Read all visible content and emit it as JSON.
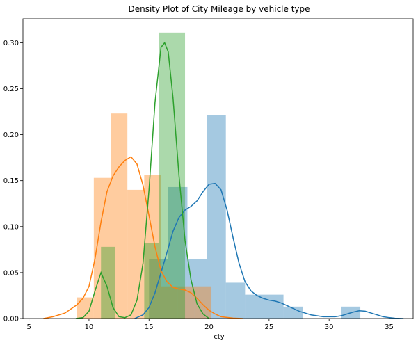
{
  "chart_data": {
    "type": "histogram+kde",
    "title": "Density Plot of City Mileage by vehicle type",
    "xlabel": "cty",
    "ylabel": "",
    "xlim": [
      4.5,
      37.0
    ],
    "ylim": [
      0,
      0.326
    ],
    "xticks": [
      5,
      10,
      15,
      20,
      25,
      30,
      35
    ],
    "yticks": [
      0.0,
      0.05,
      0.1,
      0.15,
      0.2,
      0.25,
      0.3
    ],
    "ytick_labels": [
      "0.00",
      "0.05",
      "0.10",
      "0.15",
      "0.20",
      "0.25",
      "0.30"
    ],
    "grid": false,
    "legend": "none",
    "series": [
      {
        "color": "#1f77b4",
        "hist_bins": [
          {
            "x0": 15.0,
            "x1": 16.6,
            "density": 0.065
          },
          {
            "x0": 16.6,
            "x1": 18.2,
            "density": 0.143
          },
          {
            "x0": 18.2,
            "x1": 19.8,
            "density": 0.065
          },
          {
            "x0": 19.8,
            "x1": 21.4,
            "density": 0.221
          },
          {
            "x0": 21.4,
            "x1": 23.0,
            "density": 0.039
          },
          {
            "x0": 23.0,
            "x1": 24.6,
            "density": 0.026
          },
          {
            "x0": 24.6,
            "x1": 26.2,
            "density": 0.026
          },
          {
            "x0": 26.2,
            "x1": 27.8,
            "density": 0.013
          },
          {
            "x0": 27.8,
            "x1": 29.4,
            "density": 0.0
          },
          {
            "x0": 29.4,
            "x1": 31.0,
            "density": 0.0
          },
          {
            "x0": 31.0,
            "x1": 32.6,
            "density": 0.013
          }
        ],
        "kde_points": [
          [
            13.8,
            0.0
          ],
          [
            14.5,
            0.004
          ],
          [
            15.0,
            0.012
          ],
          [
            15.5,
            0.028
          ],
          [
            16.0,
            0.05
          ],
          [
            16.5,
            0.072
          ],
          [
            17.0,
            0.095
          ],
          [
            17.5,
            0.11
          ],
          [
            18.0,
            0.118
          ],
          [
            18.5,
            0.122
          ],
          [
            19.0,
            0.128
          ],
          [
            19.5,
            0.138
          ],
          [
            20.0,
            0.146
          ],
          [
            20.5,
            0.147
          ],
          [
            21.0,
            0.14
          ],
          [
            21.5,
            0.118
          ],
          [
            22.0,
            0.088
          ],
          [
            22.5,
            0.06
          ],
          [
            23.0,
            0.04
          ],
          [
            23.5,
            0.03
          ],
          [
            24.0,
            0.025
          ],
          [
            24.5,
            0.022
          ],
          [
            25.0,
            0.02
          ],
          [
            25.5,
            0.019
          ],
          [
            26.0,
            0.017
          ],
          [
            26.5,
            0.014
          ],
          [
            27.0,
            0.011
          ],
          [
            27.5,
            0.008
          ],
          [
            28.0,
            0.006
          ],
          [
            28.5,
            0.004
          ],
          [
            29.0,
            0.003
          ],
          [
            29.5,
            0.002
          ],
          [
            30.0,
            0.002
          ],
          [
            30.5,
            0.002
          ],
          [
            31.0,
            0.003
          ],
          [
            31.5,
            0.005
          ],
          [
            32.0,
            0.007
          ],
          [
            32.5,
            0.0085
          ],
          [
            33.0,
            0.008
          ],
          [
            33.5,
            0.006
          ],
          [
            34.0,
            0.004
          ],
          [
            34.5,
            0.002
          ],
          [
            35.0,
            0.001
          ],
          [
            35.5,
            0.0003
          ],
          [
            36.2,
            0.0
          ]
        ]
      },
      {
        "color": "#ff7f0e",
        "hist_bins": [
          {
            "x0": 9.0,
            "x1": 10.4,
            "density": 0.023
          },
          {
            "x0": 10.4,
            "x1": 11.8,
            "density": 0.153
          },
          {
            "x0": 11.8,
            "x1": 13.2,
            "density": 0.223
          },
          {
            "x0": 13.2,
            "x1": 14.6,
            "density": 0.14
          },
          {
            "x0": 14.6,
            "x1": 16.0,
            "density": 0.156
          },
          {
            "x0": 16.0,
            "x1": 17.4,
            "density": 0.035
          },
          {
            "x0": 17.4,
            "x1": 18.8,
            "density": 0.035
          },
          {
            "x0": 18.8,
            "x1": 20.2,
            "density": 0.035
          }
        ],
        "kde_points": [
          [
            6.2,
            0.0
          ],
          [
            7.0,
            0.002
          ],
          [
            8.0,
            0.006
          ],
          [
            9.0,
            0.015
          ],
          [
            9.5,
            0.022
          ],
          [
            10.0,
            0.035
          ],
          [
            10.5,
            0.065
          ],
          [
            11.0,
            0.105
          ],
          [
            11.5,
            0.138
          ],
          [
            12.0,
            0.155
          ],
          [
            12.5,
            0.165
          ],
          [
            13.0,
            0.172
          ],
          [
            13.5,
            0.176
          ],
          [
            14.0,
            0.168
          ],
          [
            14.5,
            0.145
          ],
          [
            15.0,
            0.112
          ],
          [
            15.5,
            0.078
          ],
          [
            16.0,
            0.052
          ],
          [
            16.5,
            0.04
          ],
          [
            17.0,
            0.034
          ],
          [
            17.5,
            0.032
          ],
          [
            18.0,
            0.031
          ],
          [
            18.5,
            0.028
          ],
          [
            19.0,
            0.022
          ],
          [
            19.5,
            0.015
          ],
          [
            20.0,
            0.009
          ],
          [
            20.5,
            0.005
          ],
          [
            21.0,
            0.002
          ],
          [
            22.0,
            0.0005
          ],
          [
            22.8,
            0.0
          ]
        ]
      },
      {
        "color": "#2ca02c",
        "hist_bins": [
          {
            "x0": 11.0,
            "x1": 12.2,
            "density": 0.078
          },
          {
            "x0": 12.2,
            "x1": 13.4,
            "density": 0.0
          },
          {
            "x0": 13.4,
            "x1": 14.6,
            "density": 0.0
          },
          {
            "x0": 14.6,
            "x1": 15.8,
            "density": 0.082
          },
          {
            "x0": 15.8,
            "x1": 18.0,
            "density": 0.311
          }
        ],
        "kde_points": [
          [
            8.9,
            0.0
          ],
          [
            9.5,
            0.001
          ],
          [
            10.0,
            0.008
          ],
          [
            10.5,
            0.03
          ],
          [
            11.0,
            0.05
          ],
          [
            11.5,
            0.035
          ],
          [
            12.0,
            0.012
          ],
          [
            12.5,
            0.002
          ],
          [
            13.0,
            0.001
          ],
          [
            13.5,
            0.004
          ],
          [
            14.0,
            0.02
          ],
          [
            14.5,
            0.06
          ],
          [
            15.0,
            0.14
          ],
          [
            15.5,
            0.235
          ],
          [
            16.0,
            0.295
          ],
          [
            16.3,
            0.3
          ],
          [
            16.6,
            0.29
          ],
          [
            17.0,
            0.24
          ],
          [
            17.5,
            0.155
          ],
          [
            18.0,
            0.085
          ],
          [
            18.5,
            0.042
          ],
          [
            19.0,
            0.016
          ],
          [
            19.5,
            0.005
          ],
          [
            20.0,
            0.0
          ]
        ]
      }
    ]
  }
}
